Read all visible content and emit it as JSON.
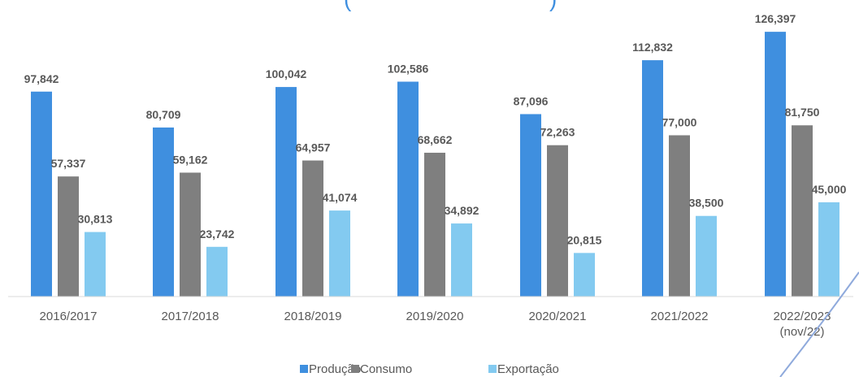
{
  "chart_data": {
    "type": "bar",
    "title_fragment": "(",
    "title_fragment_end": ")",
    "categories": [
      "2016/2017",
      "2017/2018",
      "2018/2019",
      "2019/2020",
      "2020/2021",
      "2021/2022",
      "2022/2023"
    ],
    "category_sublabels": [
      "",
      "",
      "",
      "",
      "",
      "",
      "(nov/22)"
    ],
    "series": [
      {
        "name": "Produção",
        "color": "#3f8fdf",
        "values": [
          97842,
          80709,
          100042,
          102586,
          87096,
          112832,
          126397
        ],
        "labels": [
          "97,842",
          "80,709",
          "100,042",
          "102,586",
          "87,096",
          "112,832",
          "126,397"
        ]
      },
      {
        "name": "Consumo",
        "color": "#7f7f7f",
        "values": [
          57337,
          59162,
          64957,
          68662,
          72263,
          77000,
          81750
        ],
        "labels": [
          "57,337",
          "59,162",
          "64,957",
          "68,662",
          "72,263",
          "77,000",
          "81,750"
        ]
      },
      {
        "name": "Exportação",
        "color": "#83caf0",
        "values": [
          30813,
          23742,
          41074,
          34892,
          20815,
          38500,
          45000
        ],
        "labels": [
          "30,813",
          "23,742",
          "41,074",
          "34,892",
          "20,815",
          "38,500",
          "45,000"
        ]
      }
    ],
    "ylim": [
      0,
      128000
    ],
    "grid": false,
    "legend_position": "bottom",
    "decoration_color": "#8faadc"
  }
}
